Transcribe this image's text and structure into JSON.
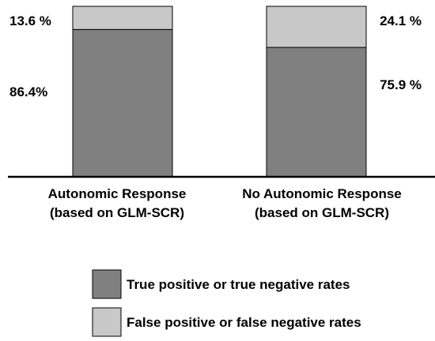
{
  "chart_data": {
    "type": "bar",
    "stacked": true,
    "categories": [
      [
        "Autonomic Response",
        "(based on GLM-SCR)"
      ],
      [
        "No Autonomic Response",
        "(based on GLM-SCR)"
      ]
    ],
    "series": [
      {
        "name": "True positive or true negative rates",
        "values": [
          86.4,
          75.9
        ],
        "labels": [
          "86.4%",
          "75.9 %"
        ],
        "color": "#808080"
      },
      {
        "name": "False positive or false negative rates",
        "values": [
          13.6,
          24.1
        ],
        "labels": [
          "13.6 %",
          "24.1 %"
        ],
        "color": "#c8c8c8"
      }
    ],
    "ylim": [
      0,
      100
    ],
    "grid": false,
    "legend_position": "bottom-center"
  }
}
